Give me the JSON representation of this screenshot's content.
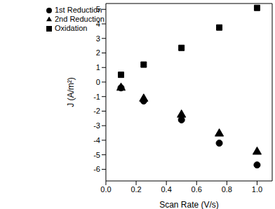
{
  "chart_data": {
    "type": "scatter",
    "x_label": "Scan Rate (V/s)",
    "y_label": "J (A/m²)",
    "xlim": [
      0,
      1.1
    ],
    "xticks": [
      {
        "value": 0,
        "label": "0.0"
      },
      {
        "value": 0.2,
        "label": "0.2"
      },
      {
        "value": 0.4,
        "label": "0.4"
      },
      {
        "value": 0.6,
        "label": "0.6"
      },
      {
        "value": 0.8,
        "label": "0.8"
      },
      {
        "value": 1,
        "label": "1.0"
      }
    ],
    "ylim": [
      -6.8,
      5.4
    ],
    "yticks": [
      -6,
      -5,
      -4,
      -3,
      -2,
      -1,
      0,
      1,
      2,
      3,
      4,
      5
    ],
    "grid": false,
    "legend": "upper left",
    "x": [
      0.1,
      0.25,
      0.5,
      0.75,
      1.0
    ],
    "series": [
      {
        "name": "Oxidation",
        "color": "#000000",
        "marker": "square",
        "values": [
          0.5,
          1.2,
          2.35,
          3.75,
          5.1
        ]
      },
      {
        "name": "1st Reduction",
        "color": "#000000",
        "marker": "circle",
        "values": [
          -0.4,
          -1.3,
          -2.6,
          -4.2,
          -5.7
        ]
      },
      {
        "name": "2nd Reduction",
        "color": "#000000",
        "marker": "triangle",
        "values": [
          -0.4,
          -1.15,
          -2.25,
          -3.55,
          -4.8
        ]
      }
    ]
  }
}
